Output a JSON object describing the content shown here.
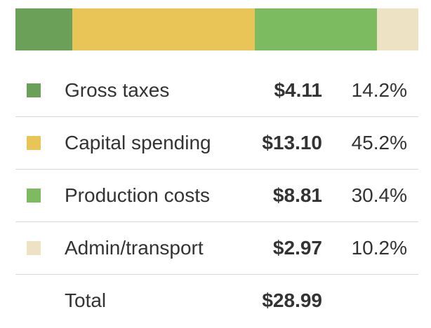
{
  "chart_data": {
    "type": "bar",
    "stacked": true,
    "orientation": "horizontal",
    "categories": [
      "Gross taxes",
      "Capital spending",
      "Production costs",
      "Admin/transport"
    ],
    "values": [
      4.11,
      13.1,
      8.81,
      2.97
    ],
    "value_labels": [
      "$4.11",
      "$13.10",
      "$8.81",
      "$2.97"
    ],
    "percent_labels": [
      "14.2%",
      "45.2%",
      "30.4%",
      "10.2%"
    ],
    "percents": [
      14.2,
      45.2,
      30.4,
      10.2
    ],
    "colors": [
      "#6aa057",
      "#e8c556",
      "#7dbb60",
      "#ede3c4"
    ],
    "total_label": "Total",
    "total_value": "$28.99",
    "legend_position": "below"
  }
}
